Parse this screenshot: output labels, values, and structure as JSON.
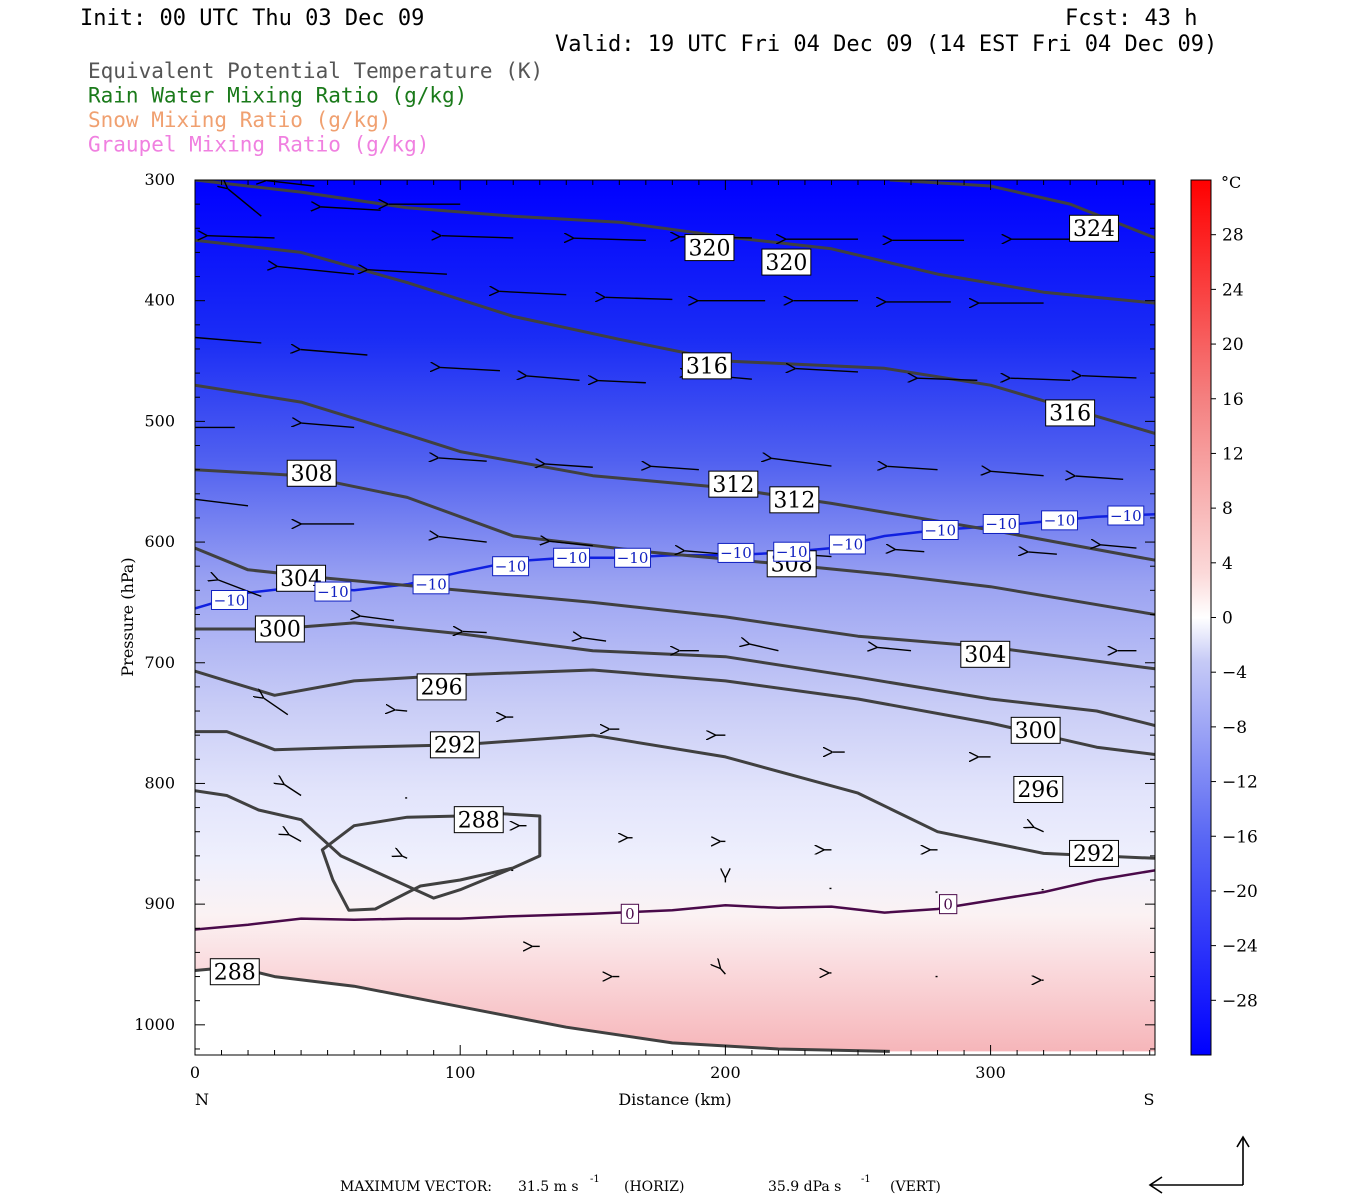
{
  "header": {
    "init": "Init: 00 UTC Thu 03 Dec 09",
    "fcst": "Fcst:   43 h",
    "valid": "Valid: 19 UTC Fri 04 Dec 09 (14 EST Fri 04 Dec 09)"
  },
  "legend": {
    "items": [
      {
        "label": "Equivalent Potential Temperature (K)",
        "color": "#555555"
      },
      {
        "label": "Rain Water Mixing Ratio (g/kg)",
        "color": "#1a7a1a"
      },
      {
        "label": "Snow Mixing Ratio (g/kg)",
        "color": "#f0a070"
      },
      {
        "label": "Graupel Mixing Ratio (g/kg)",
        "color": "#f080e0"
      }
    ]
  },
  "footer": {
    "max_vector_label": "MAXIMUM VECTOR:",
    "horiz_value": "31.5 m s",
    "horiz_unit": "(HORIZ)",
    "vert_value": "35.9 dPa s",
    "vert_unit": "(VERT)",
    "exponent": "-1"
  },
  "chart_data": {
    "type": "cross-section",
    "xlabel": "Distance (km)",
    "ylabel": "Pressure (hPa)",
    "xlim": [
      0,
      362
    ],
    "ylim": [
      1025,
      300
    ],
    "x_ticks": [
      0,
      100,
      200,
      300
    ],
    "y_ticks": [
      300,
      400,
      500,
      600,
      700,
      800,
      900,
      1000
    ],
    "x_end_labels": {
      "left": "N",
      "right": "S"
    },
    "colorbar": {
      "unit": "°C",
      "ticks": [
        28,
        24,
        20,
        16,
        12,
        8,
        4,
        0,
        -4,
        -8,
        -12,
        -16,
        -20,
        -24,
        -28
      ],
      "range": [
        -32,
        32
      ]
    },
    "temperature_field": {
      "shading": "temperature (°C), blue = cold, red = warm",
      "zero_isotherm_label": "0",
      "minus10_isotherm_label": "−10",
      "zero_isotherm": [
        [
          0,
          921
        ],
        [
          20,
          917
        ],
        [
          40,
          912
        ],
        [
          60,
          913
        ],
        [
          80,
          912
        ],
        [
          100,
          912
        ],
        [
          120,
          910
        ],
        [
          150,
          908
        ],
        [
          180,
          905
        ],
        [
          200,
          901
        ],
        [
          220,
          903
        ],
        [
          240,
          902
        ],
        [
          260,
          907
        ],
        [
          280,
          904
        ],
        [
          300,
          897
        ],
        [
          320,
          890
        ],
        [
          340,
          880
        ],
        [
          362,
          872
        ]
      ],
      "minus10_isotherm": [
        [
          0,
          655
        ],
        [
          20,
          642
        ],
        [
          40,
          637
        ],
        [
          60,
          640
        ],
        [
          80,
          635
        ],
        [
          100,
          625
        ],
        [
          120,
          616
        ],
        [
          140,
          613
        ],
        [
          160,
          613
        ],
        [
          180,
          611
        ],
        [
          200,
          611
        ],
        [
          220,
          609
        ],
        [
          240,
          605
        ],
        [
          260,
          595
        ],
        [
          280,
          590
        ],
        [
          300,
          587
        ],
        [
          320,
          583
        ],
        [
          340,
          579
        ],
        [
          362,
          577
        ]
      ],
      "zero_labels": [
        [
          164,
          908
        ],
        [
          284,
          900
        ]
      ],
      "minus10_labels": [
        [
          13,
          648
        ],
        [
          52,
          641
        ],
        [
          89,
          635
        ],
        [
          119,
          620
        ],
        [
          142,
          613
        ],
        [
          165,
          613
        ],
        [
          204,
          609
        ],
        [
          225,
          608
        ],
        [
          246,
          602
        ],
        [
          281,
          590
        ],
        [
          304,
          585
        ],
        [
          326,
          582
        ],
        [
          351,
          578
        ]
      ]
    },
    "theta_e_contours": [
      {
        "level": 288,
        "points": [
          [
            0,
            955
          ],
          [
            15,
            952
          ],
          [
            30,
            960
          ],
          [
            60,
            968
          ],
          [
            100,
            985
          ],
          [
            140,
            1002
          ],
          [
            180,
            1015
          ],
          [
            220,
            1020
          ],
          [
            262,
            1022
          ]
        ],
        "labels": [
          [
            15,
            956
          ]
        ]
      },
      {
        "level": 288,
        "points": [
          [
            0,
            806
          ],
          [
            12,
            810
          ],
          [
            24,
            822
          ],
          [
            40,
            830
          ],
          [
            55,
            860
          ],
          [
            70,
            875
          ],
          [
            90,
            895
          ],
          [
            100,
            888
          ],
          [
            120,
            870
          ],
          [
            130,
            860
          ],
          [
            130,
            827
          ],
          [
            115,
            825
          ],
          [
            100,
            827
          ],
          [
            80,
            828
          ],
          [
            60,
            835
          ],
          [
            48,
            855
          ],
          [
            52,
            880
          ],
          [
            58,
            905
          ],
          [
            68,
            904
          ],
          [
            85,
            885
          ],
          [
            100,
            880
          ],
          [
            120,
            870
          ]
        ],
        "labels": [
          [
            107,
            830
          ]
        ]
      },
      {
        "level": 292,
        "points": [
          [
            0,
            757
          ],
          [
            12,
            757
          ],
          [
            30,
            772
          ],
          [
            60,
            770
          ],
          [
            100,
            768
          ],
          [
            150,
            760
          ],
          [
            200,
            778
          ],
          [
            250,
            808
          ],
          [
            280,
            840
          ],
          [
            320,
            858
          ],
          [
            362,
            862
          ]
        ],
        "labels": [
          [
            98,
            768
          ],
          [
            339,
            858
          ]
        ]
      },
      {
        "level": 296,
        "points": [
          [
            0,
            707
          ],
          [
            12,
            715
          ],
          [
            30,
            727
          ],
          [
            60,
            715
          ],
          [
            100,
            710
          ],
          [
            150,
            706
          ],
          [
            200,
            715
          ],
          [
            250,
            730
          ],
          [
            300,
            750
          ],
          [
            340,
            770
          ],
          [
            362,
            776
          ]
        ],
        "labels": [
          [
            93,
            720
          ],
          [
            318,
            805
          ]
        ]
      },
      {
        "level": 300,
        "points": [
          [
            0,
            672
          ],
          [
            30,
            672
          ],
          [
            60,
            667
          ],
          [
            100,
            676
          ],
          [
            150,
            690
          ],
          [
            200,
            695
          ],
          [
            250,
            712
          ],
          [
            300,
            730
          ],
          [
            340,
            740
          ],
          [
            362,
            752
          ]
        ],
        "labels": [
          [
            32,
            672
          ],
          [
            317,
            756
          ]
        ]
      },
      {
        "level": 304,
        "points": [
          [
            0,
            605
          ],
          [
            20,
            623
          ],
          [
            50,
            630
          ],
          [
            100,
            640
          ],
          [
            150,
            650
          ],
          [
            200,
            662
          ],
          [
            250,
            678
          ],
          [
            300,
            687
          ],
          [
            362,
            705
          ]
        ],
        "labels": [
          [
            40,
            630
          ],
          [
            298,
            693
          ]
        ]
      },
      {
        "level": 308,
        "points": [
          [
            0,
            540
          ],
          [
            40,
            545
          ],
          [
            80,
            563
          ],
          [
            120,
            595
          ],
          [
            170,
            608
          ],
          [
            220,
            618
          ],
          [
            262,
            627
          ],
          [
            300,
            637
          ],
          [
            362,
            660
          ]
        ],
        "labels": [
          [
            44,
            543
          ],
          [
            225,
            618
          ]
        ]
      },
      {
        "level": 312,
        "points": [
          [
            0,
            470
          ],
          [
            40,
            484
          ],
          [
            80,
            511
          ],
          [
            100,
            525
          ],
          [
            150,
            545
          ],
          [
            200,
            555
          ],
          [
            240,
            568
          ],
          [
            300,
            590
          ],
          [
            362,
            615
          ]
        ],
        "labels": [
          [
            203,
            552
          ],
          [
            226,
            565
          ]
        ]
      },
      {
        "level": 316,
        "points": [
          [
            0,
            350
          ],
          [
            40,
            360
          ],
          [
            80,
            385
          ],
          [
            120,
            413
          ],
          [
            160,
            432
          ],
          [
            200,
            450
          ],
          [
            260,
            456
          ],
          [
            300,
            470
          ],
          [
            362,
            510
          ]
        ],
        "labels": [
          [
            193,
            454
          ],
          [
            330,
            493
          ]
        ]
      },
      {
        "level": 320,
        "points": [
          [
            0,
            300
          ],
          [
            40,
            310
          ],
          [
            80,
            323
          ],
          [
            120,
            330
          ],
          [
            160,
            335
          ],
          [
            200,
            347
          ],
          [
            240,
            357
          ],
          [
            280,
            378
          ],
          [
            320,
            393
          ],
          [
            362,
            402
          ]
        ],
        "labels": [
          [
            194,
            356
          ],
          [
            223,
            368
          ]
        ]
      },
      {
        "level": 324,
        "points": [
          [
            262,
            300
          ],
          [
            300,
            305
          ],
          [
            330,
            320
          ],
          [
            362,
            348
          ]
        ],
        "labels": [
          [
            339,
            340
          ]
        ]
      }
    ],
    "wind_vectors": [
      [
        25,
        330,
        -14,
        -25
      ],
      [
        45,
        305,
        -20,
        -5
      ],
      [
        70,
        325,
        -25,
        -3
      ],
      [
        100,
        320,
        -30,
        0
      ],
      [
        120,
        348,
        -30,
        -2
      ],
      [
        170,
        350,
        -30,
        -2
      ],
      [
        210,
        348,
        -30,
        -1
      ],
      [
        250,
        349,
        -30,
        0
      ],
      [
        290,
        350,
        -30,
        0
      ],
      [
        335,
        349,
        -30,
        0
      ],
      [
        30,
        348,
        -28,
        -2
      ],
      [
        60,
        378,
        -32,
        -7
      ],
      [
        95,
        378,
        -33,
        -4
      ],
      [
        140,
        395,
        -28,
        -3
      ],
      [
        180,
        399,
        -28,
        -2
      ],
      [
        215,
        400,
        -28,
        0
      ],
      [
        250,
        400,
        -27,
        0
      ],
      [
        285,
        401,
        -27,
        0
      ],
      [
        320,
        402,
        -27,
        0
      ],
      [
        25,
        435,
        -28,
        -5
      ],
      [
        65,
        445,
        -28,
        -5
      ],
      [
        115,
        458,
        -25,
        -3
      ],
      [
        145,
        466,
        -22,
        -4
      ],
      [
        170,
        468,
        -20,
        -2
      ],
      [
        210,
        465,
        -26,
        -5
      ],
      [
        250,
        459,
        -26,
        -3
      ],
      [
        295,
        466,
        -25,
        -2
      ],
      [
        330,
        466,
        -25,
        -2
      ],
      [
        355,
        464,
        -23,
        -2
      ],
      [
        15,
        505,
        -20,
        0
      ],
      [
        60,
        505,
        -22,
        -4
      ],
      [
        110,
        533,
        -20,
        -3
      ],
      [
        150,
        538,
        -20,
        -3
      ],
      [
        190,
        540,
        -20,
        -3
      ],
      [
        240,
        537,
        -25,
        -7
      ],
      [
        280,
        540,
        -21,
        -3
      ],
      [
        320,
        545,
        -22,
        -4
      ],
      [
        350,
        548,
        -20,
        -3
      ],
      [
        20,
        570,
        -22,
        -6
      ],
      [
        60,
        585,
        -22,
        0
      ],
      [
        110,
        600,
        -20,
        -5
      ],
      [
        150,
        603,
        -18,
        -4
      ],
      [
        200,
        610,
        -17,
        -3
      ],
      [
        240,
        612,
        -20,
        -3
      ],
      [
        275,
        608,
        -12,
        -2
      ],
      [
        325,
        610,
        -12,
        -2
      ],
      [
        355,
        605,
        -15,
        -3
      ],
      [
        25,
        645,
        -18,
        -15
      ],
      [
        75,
        665,
        -14,
        -4
      ],
      [
        110,
        675,
        -10,
        -1
      ],
      [
        155,
        682,
        -10,
        -3
      ],
      [
        190,
        690,
        -8,
        0
      ],
      [
        220,
        690,
        -12,
        -6
      ],
      [
        270,
        690,
        -14,
        -3
      ],
      [
        355,
        690,
        -8,
        0
      ],
      [
        35,
        743,
        -10,
        -15
      ],
      [
        80,
        740,
        -5,
        -1
      ],
      [
        120,
        745,
        -3,
        0
      ],
      [
        160,
        755,
        -4,
        0
      ],
      [
        200,
        760,
        -4,
        0
      ],
      [
        245,
        774,
        -5,
        0
      ],
      [
        300,
        778,
        -5,
        0
      ],
      [
        40,
        810,
        -7,
        -10
      ],
      [
        80,
        812,
        0,
        0
      ],
      [
        125,
        835,
        -3,
        0
      ],
      [
        165,
        845,
        -2,
        0
      ],
      [
        200,
        848,
        -2,
        0
      ],
      [
        240,
        855,
        -3,
        0
      ],
      [
        280,
        855,
        -3,
        0
      ],
      [
        320,
        840,
        -4,
        -4
      ],
      [
        40,
        848,
        -5,
        -6
      ],
      [
        80,
        862,
        -2,
        -2
      ],
      [
        120,
        872,
        0,
        0
      ],
      [
        200,
        882,
        0,
        -4
      ],
      [
        240,
        887,
        0,
        0
      ],
      [
        280,
        890,
        0,
        0
      ],
      [
        320,
        888,
        0,
        0
      ],
      [
        130,
        935,
        -3,
        0
      ],
      [
        160,
        960,
        -3,
        0
      ],
      [
        200,
        958,
        -2,
        -5
      ],
      [
        240,
        957,
        -1,
        0
      ],
      [
        280,
        960,
        0,
        0
      ],
      [
        320,
        963,
        -1,
        0
      ]
    ]
  }
}
